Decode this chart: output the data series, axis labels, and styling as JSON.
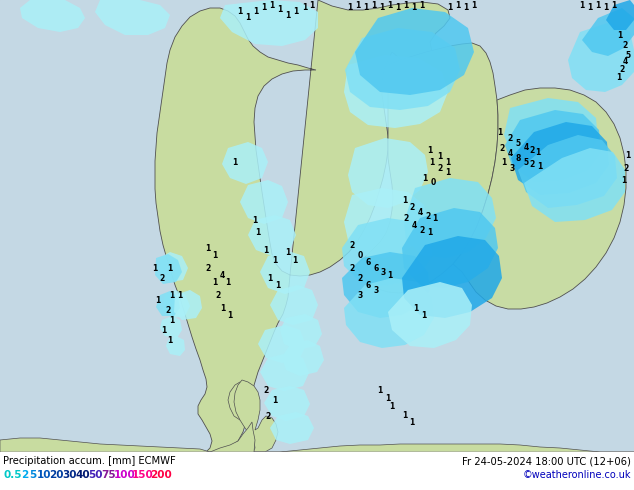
{
  "title_left": "Precipitation accum. [mm] ECMWF",
  "title_right": "Fr 24-05-2024 18:00 UTC (12+06)",
  "credit": "©weatheronline.co.uk",
  "legend_values": [
    "0.5",
    "2",
    "5",
    "10",
    "20",
    "30",
    "40",
    "50",
    "75",
    "100",
    "150",
    "200"
  ],
  "legend_colors_display": [
    "#00c8c8",
    "#00aaee",
    "#0088dd",
    "#0055bb",
    "#003da0",
    "#002888",
    "#001870",
    "#4420b8",
    "#881898",
    "#cc00cc",
    "#ff0088",
    "#ff0044"
  ],
  "bg_color": "#c8d4dc",
  "sea_color": "#b8ccd8",
  "land_color": "#c8dca0",
  "land_color2": "#d4e8a8",
  "border_color": "#505050",
  "bottom_bg": "#ffffff",
  "bottom_text_color": "#000000",
  "credit_color": "#0000bb",
  "fig_width": 6.34,
  "fig_height": 4.9,
  "dpi": 100,
  "precip_colors": {
    "p05": "#aaf0f8",
    "p2": "#80e0f5",
    "p5": "#50c8f0",
    "p10": "#20a8e8",
    "p20": "#1488d0",
    "p30": "#0060b8",
    "p40": "#0040a0",
    "p50": "#602898",
    "p75": "#902878",
    "p100": "#c82060",
    "p150": "#f01848",
    "p200": "#ff1030"
  }
}
